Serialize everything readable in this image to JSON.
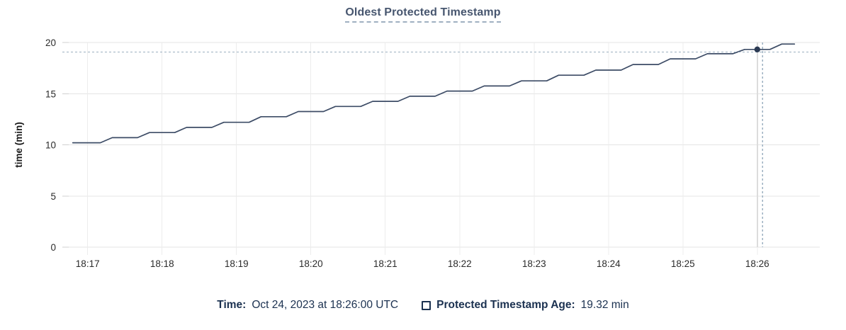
{
  "header": {
    "title": "Oldest Protected Timestamp"
  },
  "legend": {
    "time_label": "Time:",
    "time_value": "Oct 24, 2023 at 18:26:00 UTC",
    "swatch_icon": "series-swatch-square",
    "series_label": "Protected Timestamp Age:",
    "series_value": "19.32 min"
  },
  "colors": {
    "line": "#3d4c66",
    "dot": "#2b3a53",
    "grid_h": "#e4e4e4",
    "grid_v": "#ececec",
    "tick_stub": "#d0d0d0",
    "crosshair": "#9cb0c1",
    "hover_focus_line": "#dcdcdc",
    "title_text": "#47566f",
    "title_underline": "#9fb0c1",
    "legend_text": "#1b3150",
    "axis_text": "#2b2b2b"
  },
  "chart_data": {
    "type": "line",
    "title": "Oldest Protected Timestamp",
    "xlabel": "",
    "ylabel": "time (min)",
    "ylim": [
      0,
      20
    ],
    "yticks": [
      0,
      5,
      10,
      15,
      20
    ],
    "grid": true,
    "legend_position": "bottom",
    "x_axis": {
      "base_time": "18:16:00",
      "domain_minutes": [
        0.66,
        10.84
      ],
      "tick_minutes": [
        1,
        2,
        3,
        4,
        5,
        6,
        7,
        8,
        9,
        10
      ],
      "tick_labels": [
        "18:17",
        "18:18",
        "18:19",
        "18:20",
        "18:21",
        "18:22",
        "18:23",
        "18:24",
        "18:25",
        "18:26"
      ]
    },
    "series": [
      {
        "name": "Protected Timestamp Age",
        "unit": "min",
        "points_min_value": [
          [
            0.8,
            10.2
          ],
          [
            1.17,
            10.2
          ],
          [
            1.33,
            10.7
          ],
          [
            1.67,
            10.7
          ],
          [
            1.83,
            11.2
          ],
          [
            2.17,
            11.2
          ],
          [
            2.33,
            11.7
          ],
          [
            2.67,
            11.7
          ],
          [
            2.83,
            12.2
          ],
          [
            3.17,
            12.2
          ],
          [
            3.33,
            12.75
          ],
          [
            3.67,
            12.75
          ],
          [
            3.83,
            13.25
          ],
          [
            4.17,
            13.25
          ],
          [
            4.33,
            13.75
          ],
          [
            4.67,
            13.75
          ],
          [
            4.83,
            14.25
          ],
          [
            5.17,
            14.25
          ],
          [
            5.33,
            14.75
          ],
          [
            5.67,
            14.75
          ],
          [
            5.83,
            15.25
          ],
          [
            6.17,
            15.25
          ],
          [
            6.33,
            15.75
          ],
          [
            6.67,
            15.75
          ],
          [
            6.83,
            16.25
          ],
          [
            7.17,
            16.25
          ],
          [
            7.33,
            16.8
          ],
          [
            7.67,
            16.8
          ],
          [
            7.83,
            17.3
          ],
          [
            8.17,
            17.3
          ],
          [
            8.33,
            17.85
          ],
          [
            8.67,
            17.85
          ],
          [
            8.83,
            18.4
          ],
          [
            9.17,
            18.4
          ],
          [
            9.33,
            18.9
          ],
          [
            9.67,
            18.9
          ],
          [
            9.83,
            19.32
          ],
          [
            10.17,
            19.32
          ],
          [
            10.33,
            19.85
          ],
          [
            10.5,
            19.85
          ]
        ]
      }
    ],
    "hover": {
      "time": "Oct 24, 2023 at 18:26:00 UTC",
      "point_minute": 10.0,
      "point_value_min": 19.32,
      "crosshair_minute": 10.07,
      "crosshair_value_min": 19.07
    }
  }
}
